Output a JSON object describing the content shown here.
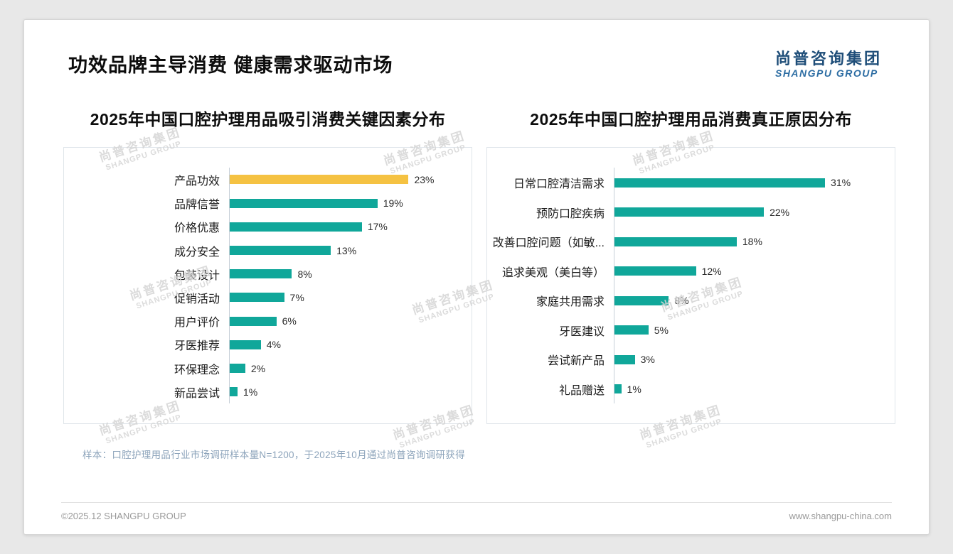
{
  "page": {
    "title": "功效品牌主导消费 健康需求驱动市场",
    "logo_cn": "尚普咨询集团",
    "logo_en": "SHANGPU GROUP",
    "footnote": "样本：口腔护理用品行业市场调研样本量N=1200，于2025年10月通过尚普咨询调研获得",
    "copyright": "©2025.12 SHANGPU GROUP",
    "website": "www.shangpu-china.com",
    "watermark_cn": "尚普咨询集团",
    "watermark_en": "SHANGPU GROUP"
  },
  "colors": {
    "teal": "#10A79A",
    "highlight_yellow": "#F5C242",
    "navy": "#1F4E79"
  },
  "chart_data": [
    {
      "type": "bar",
      "orientation": "horizontal",
      "title": "2025年中国口腔护理用品吸引消费关键因素分布",
      "categories": [
        "产品功效",
        "品牌信誉",
        "价格优惠",
        "成分安全",
        "包装设计",
        "促销活动",
        "用户评价",
        "牙医推荐",
        "环保理念",
        "新品尝试"
      ],
      "values": [
        23,
        19,
        17,
        13,
        8,
        7,
        6,
        4,
        2,
        1
      ],
      "value_suffix": "%",
      "highlight_index": 0,
      "xlim": [
        0,
        30
      ],
      "legend": "none",
      "grid": "off"
    },
    {
      "type": "bar",
      "orientation": "horizontal",
      "title": "2025年中国口腔护理用品消费真正原因分布",
      "categories": [
        "日常口腔清洁需求",
        "预防口腔疾病",
        "改善口腔问题（如敏...",
        "追求美观（美白等）",
        "家庭共用需求",
        "牙医建议",
        "尝试新产品",
        "礼品赠送"
      ],
      "values": [
        31,
        22,
        18,
        12,
        8,
        5,
        3,
        1
      ],
      "value_suffix": "%",
      "highlight_index": -1,
      "xlim": [
        0,
        40
      ],
      "legend": "none",
      "grid": "off"
    }
  ]
}
